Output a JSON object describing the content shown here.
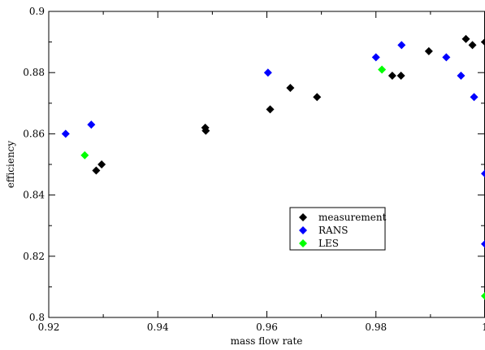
{
  "chart_data": {
    "type": "scatter",
    "title": "",
    "xlabel": "mass flow rate",
    "ylabel": "efficiency",
    "xlim": [
      0.92,
      1.0
    ],
    "ylim": [
      0.8,
      0.9
    ],
    "grid": false,
    "legend_position": "center-right",
    "x_ticks": [
      {
        "value": 0.92,
        "label": "0.92"
      },
      {
        "value": 0.94,
        "label": "0.94"
      },
      {
        "value": 0.96,
        "label": "0.96"
      },
      {
        "value": 0.98,
        "label": "0.98"
      },
      {
        "value": 1.0,
        "label": "1"
      }
    ],
    "y_ticks": [
      {
        "value": 0.8,
        "label": "0.8"
      },
      {
        "value": 0.82,
        "label": "0.82"
      },
      {
        "value": 0.84,
        "label": "0.84"
      },
      {
        "value": 0.86,
        "label": "0.86"
      },
      {
        "value": 0.88,
        "label": "0.88"
      },
      {
        "value": 0.9,
        "label": "0.9"
      }
    ],
    "series": [
      {
        "name": "measurement",
        "color": "#000000",
        "marker": "diamond",
        "points": [
          [
            0.9287,
            0.848
          ],
          [
            0.9297,
            0.85
          ],
          [
            0.9487,
            0.862
          ],
          [
            0.9488,
            0.861
          ],
          [
            0.9606,
            0.868
          ],
          [
            0.9643,
            0.875
          ],
          [
            0.9692,
            0.872
          ],
          [
            0.983,
            0.879
          ],
          [
            0.9846,
            0.879
          ],
          [
            0.9897,
            0.887
          ],
          [
            0.9965,
            0.891
          ],
          [
            0.9977,
            0.889
          ],
          [
            1.0,
            0.89
          ]
        ]
      },
      {
        "name": "RANS",
        "color": "#0000ff",
        "marker": "diamond",
        "points": [
          [
            0.9231,
            0.86
          ],
          [
            0.9278,
            0.863
          ],
          [
            0.9602,
            0.88
          ],
          [
            0.98,
            0.885
          ],
          [
            0.9847,
            0.889
          ],
          [
            0.9929,
            0.885
          ],
          [
            0.9956,
            0.879
          ],
          [
            0.998,
            0.872
          ],
          [
            1.0,
            0.847
          ],
          [
            1.0,
            0.824
          ]
        ]
      },
      {
        "name": "LES",
        "color": "#00ff00",
        "marker": "diamond",
        "points": [
          [
            0.9266,
            0.853
          ],
          [
            0.9811,
            0.881
          ],
          [
            1.0,
            0.807
          ]
        ]
      }
    ]
  }
}
